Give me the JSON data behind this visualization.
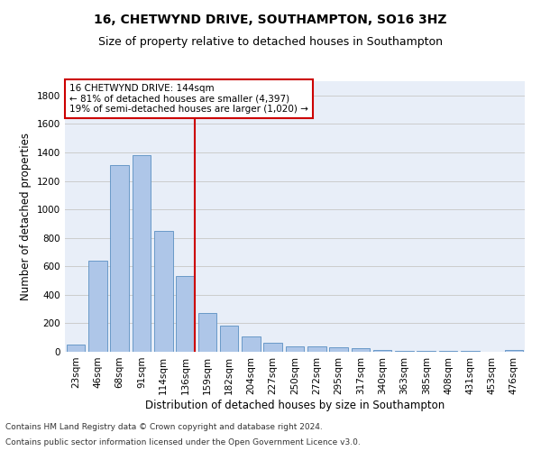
{
  "title1": "16, CHETWYND DRIVE, SOUTHAMPTON, SO16 3HZ",
  "title2": "Size of property relative to detached houses in Southampton",
  "xlabel": "Distribution of detached houses by size in Southampton",
  "ylabel": "Number of detached properties",
  "categories": [
    "23sqm",
    "46sqm",
    "68sqm",
    "91sqm",
    "114sqm",
    "136sqm",
    "159sqm",
    "182sqm",
    "204sqm",
    "227sqm",
    "250sqm",
    "272sqm",
    "295sqm",
    "317sqm",
    "340sqm",
    "363sqm",
    "385sqm",
    "408sqm",
    "431sqm",
    "453sqm",
    "476sqm"
  ],
  "values": [
    50,
    640,
    1310,
    1380,
    850,
    530,
    270,
    185,
    105,
    65,
    40,
    35,
    30,
    25,
    15,
    8,
    5,
    5,
    5,
    3,
    15
  ],
  "bar_color": "#aec6e8",
  "bar_edge_color": "#5a8fc2",
  "vline_color": "#cc0000",
  "annotation_text": "16 CHETWYND DRIVE: 144sqm\n← 81% of detached houses are smaller (4,397)\n19% of semi-detached houses are larger (1,020) →",
  "annotation_box_color": "#cc0000",
  "annotation_bg_color": "white",
  "ylim": [
    0,
    1900
  ],
  "yticks": [
    0,
    200,
    400,
    600,
    800,
    1000,
    1200,
    1400,
    1600,
    1800
  ],
  "grid_color": "#cccccc",
  "background_color": "#e8eef8",
  "footer1": "Contains HM Land Registry data © Crown copyright and database right 2024.",
  "footer2": "Contains public sector information licensed under the Open Government Licence v3.0.",
  "title1_fontsize": 10,
  "title2_fontsize": 9,
  "xlabel_fontsize": 8.5,
  "ylabel_fontsize": 8.5,
  "tick_fontsize": 7.5,
  "annotation_fontsize": 7.5,
  "footer_fontsize": 6.5
}
